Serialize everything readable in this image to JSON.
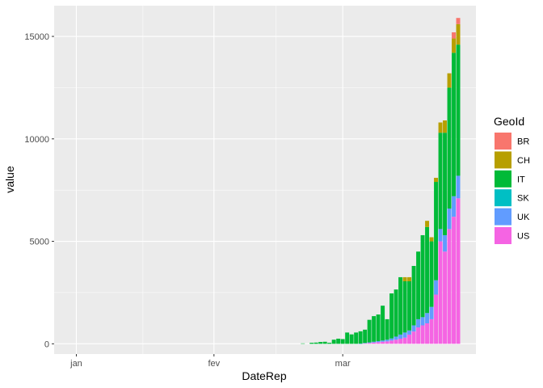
{
  "chart_data": {
    "type": "bar",
    "stacked": true,
    "xlabel": "DateRep",
    "ylabel": "value",
    "x_ticks": [
      {
        "label": "jan",
        "date": "2020-01-01"
      },
      {
        "label": "fev",
        "date": "2020-02-01"
      },
      {
        "label": "mar",
        "date": "2020-03-01"
      }
    ],
    "y_ticks": [
      0,
      5000,
      10000,
      15000
    ],
    "xlim": [
      "2019-12-27",
      "2020-03-31"
    ],
    "ylim": [
      -500,
      16500
    ],
    "grid": true,
    "legend": {
      "title": "GeoId",
      "placement": "right",
      "entries": [
        {
          "key": "BR",
          "color": "#F8766D"
        },
        {
          "key": "CH",
          "color": "#B79F00"
        },
        {
          "key": "IT",
          "color": "#00BA38"
        },
        {
          "key": "SK",
          "color": "#00BFC4"
        },
        {
          "key": "UK",
          "color": "#619CFF"
        },
        {
          "key": "US",
          "color": "#F564E3"
        }
      ]
    },
    "stack_order_bottom_to_top": [
      "US",
      "UK",
      "SK",
      "IT",
      "CH",
      "BR"
    ],
    "dates": [
      "2020-02-21",
      "2020-02-22",
      "2020-02-23",
      "2020-02-24",
      "2020-02-25",
      "2020-02-26",
      "2020-02-27",
      "2020-02-28",
      "2020-02-29",
      "2020-03-01",
      "2020-03-02",
      "2020-03-03",
      "2020-03-04",
      "2020-03-05",
      "2020-03-06",
      "2020-03-07",
      "2020-03-08",
      "2020-03-09",
      "2020-03-10",
      "2020-03-11",
      "2020-03-12",
      "2020-03-13",
      "2020-03-14",
      "2020-03-15",
      "2020-03-16",
      "2020-03-17",
      "2020-03-18",
      "2020-03-19",
      "2020-03-20",
      "2020-03-21",
      "2020-03-22",
      "2020-03-23",
      "2020-03-24",
      "2020-03-25",
      "2020-03-26",
      "2020-03-27"
    ],
    "series": [
      {
        "name": "US",
        "values": [
          0,
          0,
          0,
          0,
          0,
          0,
          0,
          0,
          0,
          0,
          0,
          0,
          0,
          0,
          20,
          40,
          60,
          80,
          100,
          120,
          160,
          200,
          250,
          300,
          450,
          600,
          800,
          900,
          1000,
          1200,
          2400,
          5000,
          4500,
          5600,
          6200,
          7100
        ]
      },
      {
        "name": "UK",
        "values": [
          0,
          0,
          0,
          0,
          0,
          0,
          0,
          0,
          0,
          0,
          0,
          0,
          0,
          10,
          20,
          30,
          40,
          50,
          60,
          80,
          100,
          150,
          200,
          250,
          200,
          300,
          400,
          400,
          500,
          600,
          700,
          600,
          800,
          1000,
          1000,
          1100
        ]
      },
      {
        "name": "SK",
        "values": [
          0,
          0,
          0,
          0,
          0,
          0,
          0,
          0,
          0,
          0,
          0,
          0,
          0,
          0,
          0,
          0,
          0,
          0,
          0,
          0,
          0,
          0,
          0,
          0,
          0,
          0,
          0,
          0,
          0,
          0,
          0,
          0,
          0,
          0,
          0,
          0
        ]
      },
      {
        "name": "IT",
        "values": [
          20,
          0,
          50,
          60,
          90,
          100,
          50,
          200,
          250,
          230,
          550,
          460,
          550,
          600,
          650,
          1100,
          1250,
          1300,
          1700,
          1000,
          2200,
          2300,
          2800,
          2500,
          2400,
          2900,
          3300,
          4000,
          4200,
          3200,
          4800,
          4700,
          5000,
          5900,
          7000,
          6400
        ]
      },
      {
        "name": "CH",
        "values": [
          0,
          0,
          0,
          0,
          0,
          0,
          0,
          0,
          0,
          0,
          0,
          0,
          0,
          0,
          0,
          0,
          0,
          0,
          0,
          0,
          0,
          0,
          0,
          200,
          200,
          0,
          0,
          0,
          300,
          200,
          200,
          500,
          600,
          700,
          700,
          1000
        ]
      },
      {
        "name": "BR",
        "values": [
          0,
          0,
          0,
          0,
          0,
          0,
          0,
          0,
          0,
          0,
          0,
          0,
          0,
          0,
          0,
          0,
          0,
          0,
          0,
          0,
          0,
          0,
          0,
          0,
          0,
          0,
          0,
          0,
          0,
          0,
          0,
          0,
          0,
          0,
          300,
          300
        ]
      }
    ]
  }
}
